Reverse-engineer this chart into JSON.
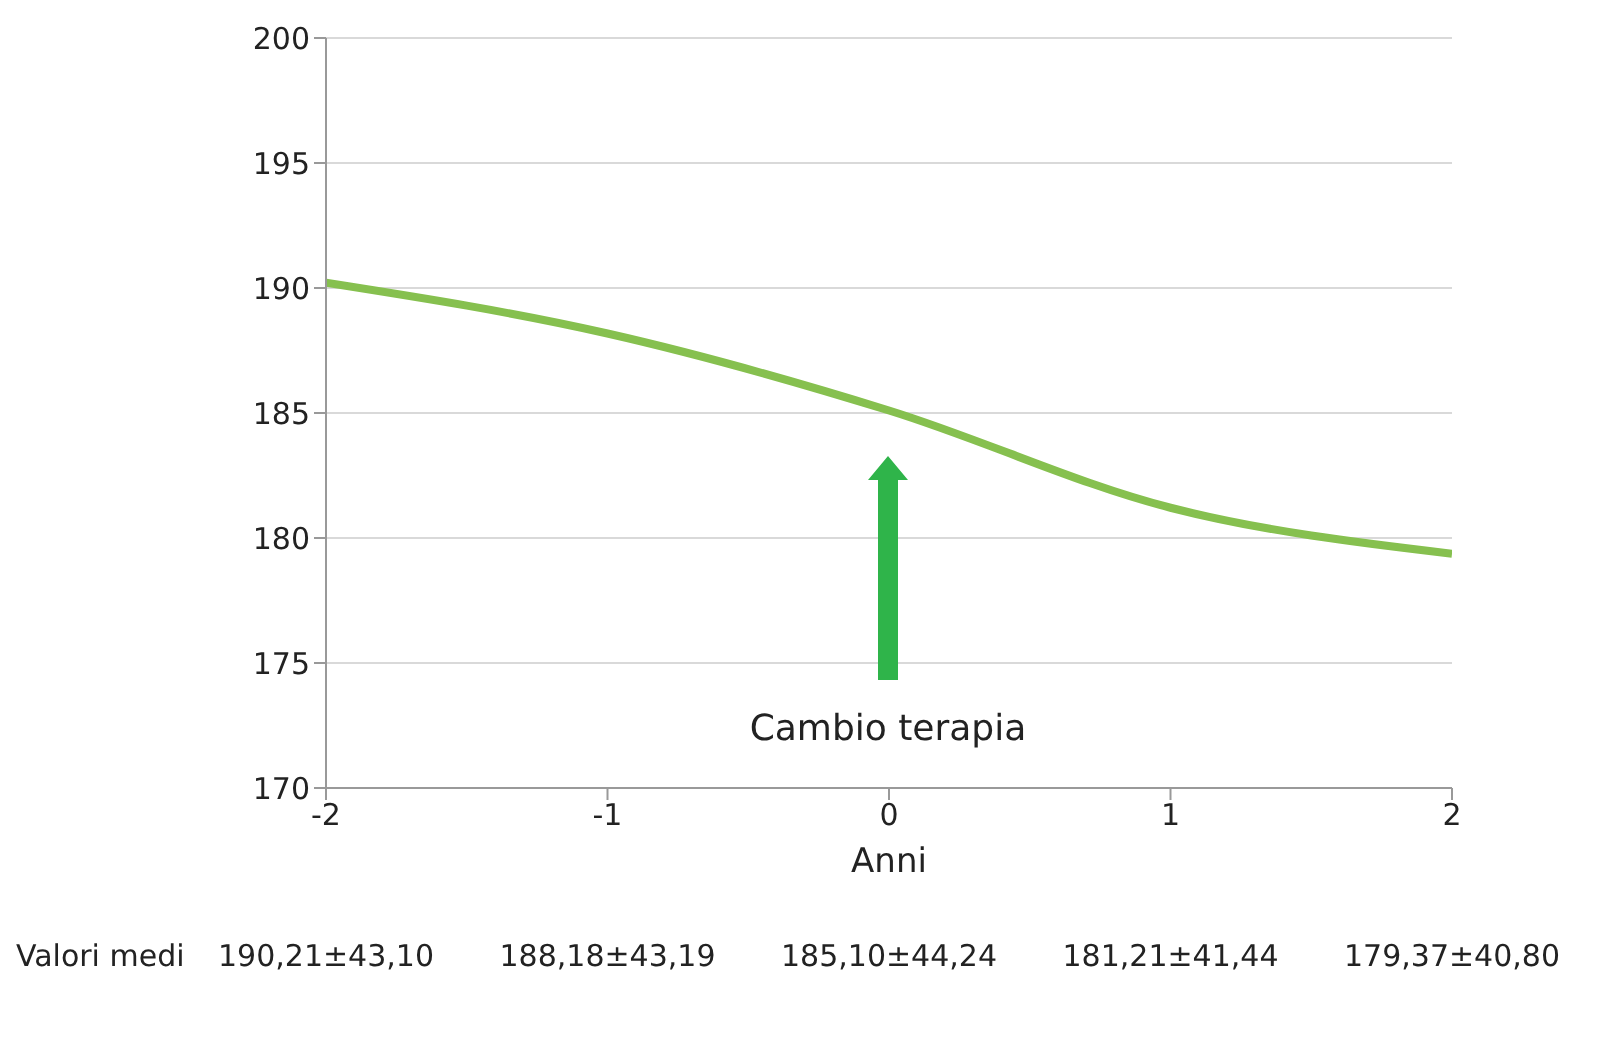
{
  "chart_data": {
    "type": "line",
    "xlabel": "Anni",
    "x": [
      -2,
      -1,
      0,
      1,
      2
    ],
    "series": [
      {
        "color": "#86c04f",
        "values": [
          190.21,
          188.18,
          185.1,
          181.21,
          179.37
        ]
      }
    ],
    "xlim": [
      -2,
      2
    ],
    "xticks": [
      -2,
      -1,
      0,
      1,
      2
    ],
    "ylim": [
      170,
      200
    ],
    "yticks": [
      170,
      175,
      180,
      185,
      190,
      195,
      200
    ],
    "grid": "y",
    "legend": false,
    "marker": "none",
    "line_style": "solid",
    "annotations": [
      "Valori medi",
      "190,21±43,10",
      "188,18±43,19",
      "185,10±44,24",
      "181,21±41,44",
      "179,37±40,80",
      "Cambio terapia"
    ]
  }
}
